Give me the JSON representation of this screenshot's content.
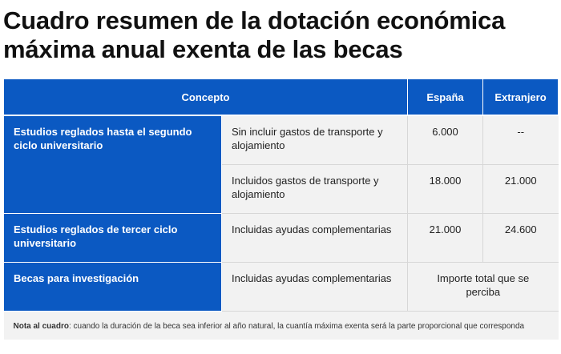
{
  "title": {
    "line1": "Cuadro resumen de la dotación económica",
    "line2": "máxima anual exenta de las becas"
  },
  "table": {
    "headers": {
      "concepto": "Concepto",
      "espana": "España",
      "extranjero": "Extranjero"
    },
    "groups": [
      {
        "concept": "Estudios reglados hasta el segundo ciclo universitario"
      },
      {
        "concept": "Estudios reglados de tercer ciclo universitario"
      },
      {
        "concept": "Becas para investigación"
      }
    ],
    "rows": [
      {
        "detail": "Sin incluir gastos de transporte y alojamiento",
        "espana": "6.000",
        "extranjero": "--"
      },
      {
        "detail": "Incluidos gastos de transporte y alojamiento",
        "espana": "18.000",
        "extranjero": "21.000"
      },
      {
        "detail": "Incluidas ayudas complementarias",
        "espana": "21.000",
        "extranjero": "24.600"
      },
      {
        "detail": "Incluidas ayudas complementarias",
        "merged_value": "Importe total que se perciba"
      }
    ],
    "note": {
      "label": "Nota al cuadro",
      "text": ": cuando la duración de la beca sea inferior al año natural, la cuantía máxima exenta será la parte proporcional que corresponda"
    }
  },
  "colors": {
    "header_blue": "#0b59c2",
    "cell_gray": "#f2f2f2"
  }
}
